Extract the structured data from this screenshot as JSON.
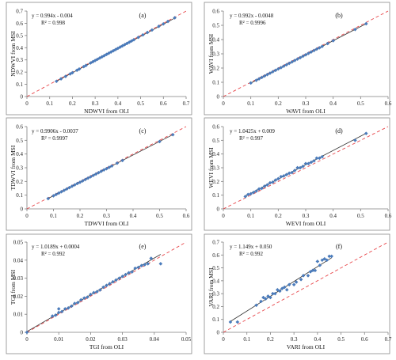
{
  "chart_data": [
    {
      "type": "scatter",
      "panel_label": "(a)",
      "xlabel": "NDWVI from OLI",
      "ylabel": "NDWVI from MSI",
      "xlim": [
        0,
        0.7
      ],
      "ylim": [
        0,
        0.7
      ],
      "xticks": [
        "0",
        "0.1",
        "0.2",
        "0.3",
        "0.4",
        "0.5",
        "0.6",
        "0.7"
      ],
      "yticks": [
        "0",
        "0.1",
        "0.2",
        "0.3",
        "0.4",
        "0.5",
        "0.6",
        "0.7"
      ],
      "equation": "y = 0.994x - 0.004",
      "r2": "R² = 0.998",
      "fit": {
        "slope": 0.994,
        "intercept": -0.004
      },
      "grid": false,
      "x": [
        0.13,
        0.15,
        0.17,
        0.19,
        0.2,
        0.22,
        0.23,
        0.25,
        0.26,
        0.28,
        0.29,
        0.3,
        0.31,
        0.32,
        0.33,
        0.34,
        0.35,
        0.36,
        0.37,
        0.38,
        0.39,
        0.4,
        0.41,
        0.42,
        0.43,
        0.44,
        0.45,
        0.46,
        0.47,
        0.49,
        0.51,
        0.53,
        0.55,
        0.58,
        0.6,
        0.62,
        0.65
      ],
      "y": [
        0.125,
        0.145,
        0.165,
        0.185,
        0.195,
        0.215,
        0.225,
        0.245,
        0.255,
        0.275,
        0.285,
        0.295,
        0.305,
        0.315,
        0.325,
        0.335,
        0.345,
        0.355,
        0.365,
        0.375,
        0.385,
        0.395,
        0.405,
        0.415,
        0.425,
        0.435,
        0.445,
        0.455,
        0.465,
        0.485,
        0.505,
        0.525,
        0.545,
        0.575,
        0.595,
        0.615,
        0.645
      ]
    },
    {
      "type": "scatter",
      "panel_label": "(b)",
      "xlabel": "WAVI from OLI",
      "ylabel": "WAVI from MSI",
      "xlim": [
        0,
        0.6
      ],
      "ylim": [
        0,
        0.6
      ],
      "xticks": [
        "0",
        "0.1",
        "0.2",
        "0.3",
        "0.4",
        "0.5",
        "0.6"
      ],
      "yticks": [
        "0",
        "0.1",
        "0.2",
        "0.3",
        "0.4",
        "0.5",
        "0.6"
      ],
      "equation": "y = 0.992x - 0.0048",
      "r2": "R² = 0.9996",
      "fit": {
        "slope": 0.992,
        "intercept": -0.0048
      },
      "grid": false,
      "x": [
        0.1,
        0.12,
        0.13,
        0.14,
        0.15,
        0.16,
        0.17,
        0.18,
        0.19,
        0.2,
        0.21,
        0.22,
        0.23,
        0.24,
        0.25,
        0.26,
        0.27,
        0.28,
        0.29,
        0.3,
        0.31,
        0.32,
        0.33,
        0.34,
        0.35,
        0.36,
        0.38,
        0.4,
        0.48,
        0.52
      ],
      "y": [
        0.095,
        0.114,
        0.124,
        0.134,
        0.144,
        0.154,
        0.164,
        0.174,
        0.184,
        0.194,
        0.203,
        0.213,
        0.223,
        0.233,
        0.243,
        0.253,
        0.263,
        0.273,
        0.283,
        0.293,
        0.303,
        0.313,
        0.323,
        0.333,
        0.342,
        0.352,
        0.372,
        0.392,
        0.471,
        0.511
      ]
    },
    {
      "type": "scatter",
      "panel_label": "(c)",
      "xlabel": "TDWVI from OLI",
      "ylabel": "TDWVI from MSI",
      "xlim": [
        0,
        0.6
      ],
      "ylim": [
        0,
        0.6
      ],
      "xticks": [
        "0",
        "0.1",
        "0.2",
        "0.3",
        "0.4",
        "0.5",
        "0.6"
      ],
      "yticks": [
        "0",
        "0.1",
        "0.2",
        "0.3",
        "0.4",
        "0.5",
        "0.6"
      ],
      "equation": "y = 0.9906x - 0.0037",
      "r2": "R² = 0.9997",
      "fit": {
        "slope": 0.9906,
        "intercept": -0.0037
      },
      "grid": false,
      "x": [
        0.08,
        0.1,
        0.11,
        0.12,
        0.13,
        0.14,
        0.15,
        0.16,
        0.17,
        0.18,
        0.19,
        0.2,
        0.21,
        0.22,
        0.23,
        0.24,
        0.25,
        0.26,
        0.27,
        0.28,
        0.29,
        0.3,
        0.31,
        0.32,
        0.34,
        0.36,
        0.5,
        0.55
      ],
      "y": [
        0.075,
        0.095,
        0.105,
        0.115,
        0.125,
        0.135,
        0.145,
        0.155,
        0.165,
        0.175,
        0.185,
        0.194,
        0.204,
        0.214,
        0.224,
        0.234,
        0.244,
        0.254,
        0.264,
        0.274,
        0.284,
        0.293,
        0.303,
        0.313,
        0.333,
        0.353,
        0.491,
        0.541
      ]
    },
    {
      "type": "scatter",
      "panel_label": "(d)",
      "xlabel": "WEVI from OLI",
      "ylabel": "WEVI from MSI",
      "xlim": [
        0,
        0.6
      ],
      "ylim": [
        0,
        0.6
      ],
      "xticks": [
        "0",
        "0.1",
        "0.2",
        "0.3",
        "0.4",
        "0.5",
        "0.6"
      ],
      "yticks": [
        "0",
        "0.1",
        "0.2",
        "0.3",
        "0.4",
        "0.5",
        "0.6"
      ],
      "equation": "y = 1.0425x + 0.009",
      "r2": "R² = 0.997",
      "fit": {
        "slope": 1.0425,
        "intercept": 0.009
      },
      "grid": false,
      "x": [
        0.08,
        0.09,
        0.1,
        0.11,
        0.12,
        0.13,
        0.14,
        0.15,
        0.16,
        0.17,
        0.18,
        0.19,
        0.2,
        0.21,
        0.22,
        0.23,
        0.24,
        0.25,
        0.26,
        0.27,
        0.28,
        0.29,
        0.3,
        0.31,
        0.32,
        0.33,
        0.34,
        0.35,
        0.36,
        0.48,
        0.52
      ],
      "y": [
        0.09,
        0.105,
        0.11,
        0.12,
        0.13,
        0.145,
        0.15,
        0.165,
        0.175,
        0.19,
        0.195,
        0.21,
        0.22,
        0.235,
        0.24,
        0.25,
        0.26,
        0.265,
        0.28,
        0.3,
        0.3,
        0.31,
        0.33,
        0.33,
        0.34,
        0.35,
        0.37,
        0.37,
        0.38,
        0.5,
        0.55
      ]
    },
    {
      "type": "scatter",
      "panel_label": "(e)",
      "xlabel": "TGI from OLI",
      "ylabel": "TGI from MSI",
      "xlim": [
        0,
        0.05
      ],
      "ylim": [
        0,
        0.05
      ],
      "xticks": [
        "0",
        "0.01",
        "0.02",
        "0.03",
        "0.04",
        "0.05"
      ],
      "yticks": [
        "0",
        "0.01",
        "0.02",
        "0.03",
        "0.04",
        "0.05"
      ],
      "equation": "y = 1.0189x + 0.0004",
      "r2": "R² = 0.992",
      "fit": {
        "slope": 1.0189,
        "intercept": 0.0004
      },
      "grid": false,
      "x": [
        0.0,
        0.008,
        0.009,
        0.01,
        0.01,
        0.011,
        0.012,
        0.013,
        0.014,
        0.015,
        0.016,
        0.017,
        0.018,
        0.019,
        0.02,
        0.021,
        0.022,
        0.023,
        0.024,
        0.025,
        0.026,
        0.027,
        0.028,
        0.029,
        0.03,
        0.031,
        0.032,
        0.033,
        0.034,
        0.035,
        0.036,
        0.037,
        0.038,
        0.039,
        0.042
      ],
      "y": [
        0.0,
        0.009,
        0.0095,
        0.011,
        0.013,
        0.0115,
        0.013,
        0.0135,
        0.0145,
        0.016,
        0.0165,
        0.018,
        0.019,
        0.0195,
        0.021,
        0.022,
        0.0225,
        0.0235,
        0.025,
        0.026,
        0.027,
        0.028,
        0.029,
        0.03,
        0.031,
        0.032,
        0.033,
        0.0335,
        0.0355,
        0.036,
        0.037,
        0.0375,
        0.038,
        0.041,
        0.038
      ]
    },
    {
      "type": "scatter",
      "panel_label": "(f)",
      "xlabel": "VARI from OLI",
      "ylabel": "VARI from MSI",
      "xlim": [
        0,
        0.7
      ],
      "ylim": [
        0,
        0.7
      ],
      "xticks": [
        "0",
        "0.1",
        "0.2",
        "0.3",
        "0.4",
        "0.5",
        "0.6",
        "0.7"
      ],
      "yticks": [
        "0",
        "0.1",
        "0.2",
        "0.3",
        "0.4",
        "0.5",
        "0.6",
        "0.7"
      ],
      "equation": "y = 1.149x + 0.050",
      "r2": "R² = 0.992",
      "fit": {
        "slope": 1.149,
        "intercept": 0.05
      },
      "grid": false,
      "x": [
        0.03,
        0.06,
        0.14,
        0.16,
        0.17,
        0.18,
        0.19,
        0.2,
        0.21,
        0.22,
        0.23,
        0.24,
        0.25,
        0.26,
        0.27,
        0.28,
        0.3,
        0.31,
        0.33,
        0.34,
        0.36,
        0.37,
        0.38,
        0.39,
        0.4,
        0.41,
        0.42,
        0.43,
        0.44,
        0.45,
        0.46
      ],
      "y": [
        0.08,
        0.08,
        0.21,
        0.24,
        0.27,
        0.26,
        0.28,
        0.27,
        0.3,
        0.3,
        0.33,
        0.32,
        0.34,
        0.35,
        0.33,
        0.37,
        0.37,
        0.39,
        0.41,
        0.44,
        0.44,
        0.47,
        0.48,
        0.48,
        0.55,
        0.52,
        0.56,
        0.57,
        0.56,
        0.59,
        0.59
      ]
    }
  ]
}
